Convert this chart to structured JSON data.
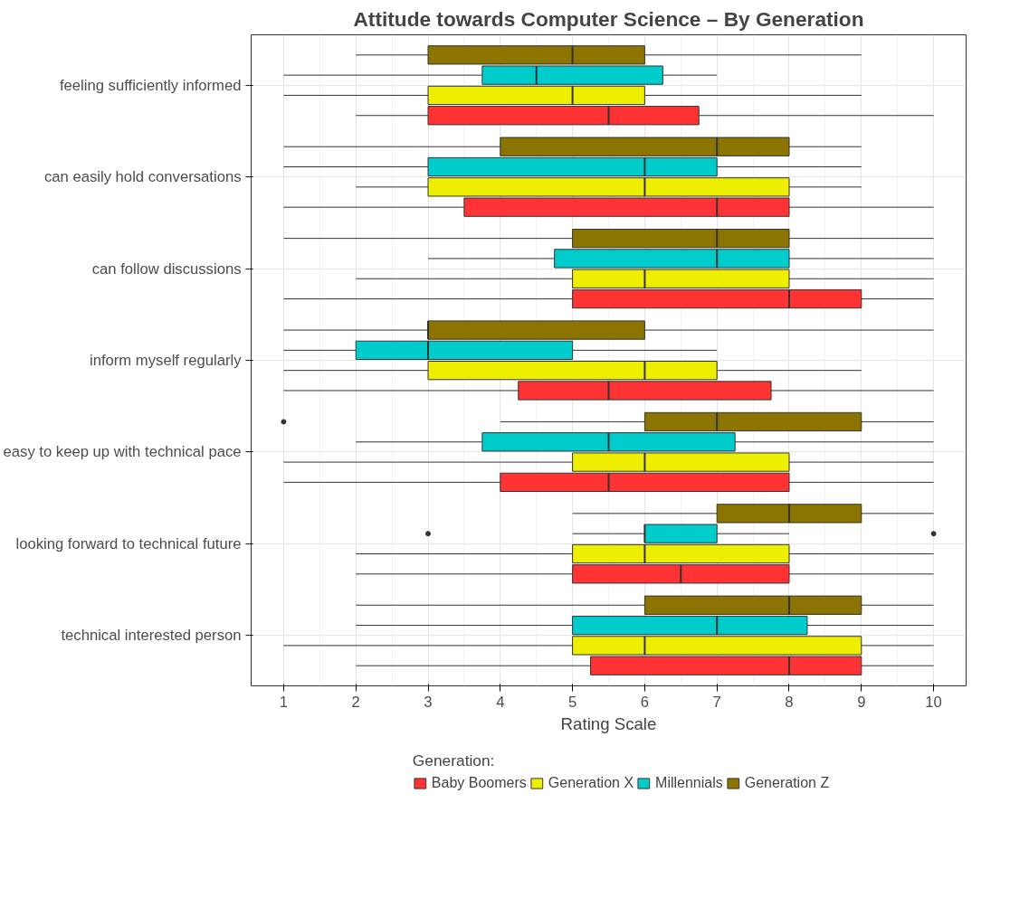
{
  "chart_data": {
    "type": "box",
    "orientation": "horizontal",
    "title": "Attitude towards Computer Science – By Generation",
    "xlabel": "Rating Scale",
    "legend_title": "Generation:",
    "legend": "bottom",
    "grid": true,
    "categories": [
      "feeling sufficiently informed",
      "can easily hold conversations",
      "can follow discussions",
      "inform myself regularly",
      "easy to keep up with technical pace",
      "looking forward to technical future",
      "technical interested person"
    ],
    "xlim": [
      0.55,
      10.45
    ],
    "xticks": [
      1,
      2,
      3,
      4,
      5,
      6,
      7,
      8,
      9,
      10
    ],
    "series": [
      {
        "name": "Baby Boomers",
        "color": "#ff3333",
        "boxes": [
          {
            "low": 2,
            "q1": 3,
            "median": 5.5,
            "q3": 6.75,
            "high": 10
          },
          {
            "low": 1,
            "q1": 3.5,
            "median": 7,
            "q3": 8,
            "high": 10
          },
          {
            "low": 1,
            "q1": 5,
            "median": 8,
            "q3": 9,
            "high": 10
          },
          {
            "low": 1,
            "q1": 4.25,
            "median": 5.5,
            "q3": 7.75,
            "high": 10
          },
          {
            "low": 1,
            "q1": 4,
            "median": 5.5,
            "q3": 8,
            "high": 10
          },
          {
            "low": 2,
            "q1": 5,
            "median": 6.5,
            "q3": 8,
            "high": 10
          },
          {
            "low": 2,
            "q1": 5.25,
            "median": 8,
            "q3": 9,
            "high": 10
          }
        ]
      },
      {
        "name": "Generation X",
        "color": "#eeee00",
        "boxes": [
          {
            "low": 1,
            "q1": 3,
            "median": 5,
            "q3": 6,
            "high": 9
          },
          {
            "low": 2,
            "q1": 3,
            "median": 6,
            "q3": 8,
            "high": 9
          },
          {
            "low": 2,
            "q1": 5,
            "median": 6,
            "q3": 8,
            "high": 10
          },
          {
            "low": 1,
            "q1": 3,
            "median": 6,
            "q3": 7,
            "high": 9
          },
          {
            "low": 1,
            "q1": 5,
            "median": 6,
            "q3": 8,
            "high": 10
          },
          {
            "low": 2,
            "q1": 5,
            "median": 6,
            "q3": 8,
            "high": 10
          },
          {
            "low": 1,
            "q1": 5,
            "median": 6,
            "q3": 9,
            "high": 10
          }
        ]
      },
      {
        "name": "Millennials",
        "color": "#00cccc",
        "boxes": [
          {
            "low": 1,
            "q1": 3.75,
            "median": 4.5,
            "q3": 6.25,
            "high": 7
          },
          {
            "low": 1,
            "q1": 3,
            "median": 6,
            "q3": 7,
            "high": 9
          },
          {
            "low": 3,
            "q1": 4.75,
            "median": 7,
            "q3": 8,
            "high": 10
          },
          {
            "low": 1,
            "q1": 2,
            "median": 3,
            "q3": 5,
            "high": 7
          },
          {
            "low": 2,
            "q1": 3.75,
            "median": 5.5,
            "q3": 7.25,
            "high": 10
          },
          {
            "low": 5,
            "q1": 6,
            "median": 6,
            "q3": 7,
            "high": 8,
            "outliers": [
              3,
              10
            ]
          },
          {
            "low": 2,
            "q1": 5,
            "median": 7,
            "q3": 8.25,
            "high": 10
          }
        ]
      },
      {
        "name": "Generation Z",
        "color": "#8b7500",
        "boxes": [
          {
            "low": 2,
            "q1": 3,
            "median": 5,
            "q3": 6,
            "high": 9
          },
          {
            "low": 1,
            "q1": 4,
            "median": 7,
            "q3": 8,
            "high": 9
          },
          {
            "low": 1,
            "q1": 5,
            "median": 7,
            "q3": 8,
            "high": 10
          },
          {
            "low": 1,
            "q1": 3,
            "median": 3,
            "q3": 6,
            "high": 10
          },
          {
            "low": 4,
            "q1": 6,
            "median": 7,
            "q3": 9,
            "high": 10,
            "outliers": [
              1
            ]
          },
          {
            "low": 5,
            "q1": 7,
            "median": 8,
            "q3": 9,
            "high": 10
          },
          {
            "low": 2,
            "q1": 6,
            "median": 8,
            "q3": 9,
            "high": 10
          }
        ]
      }
    ]
  }
}
